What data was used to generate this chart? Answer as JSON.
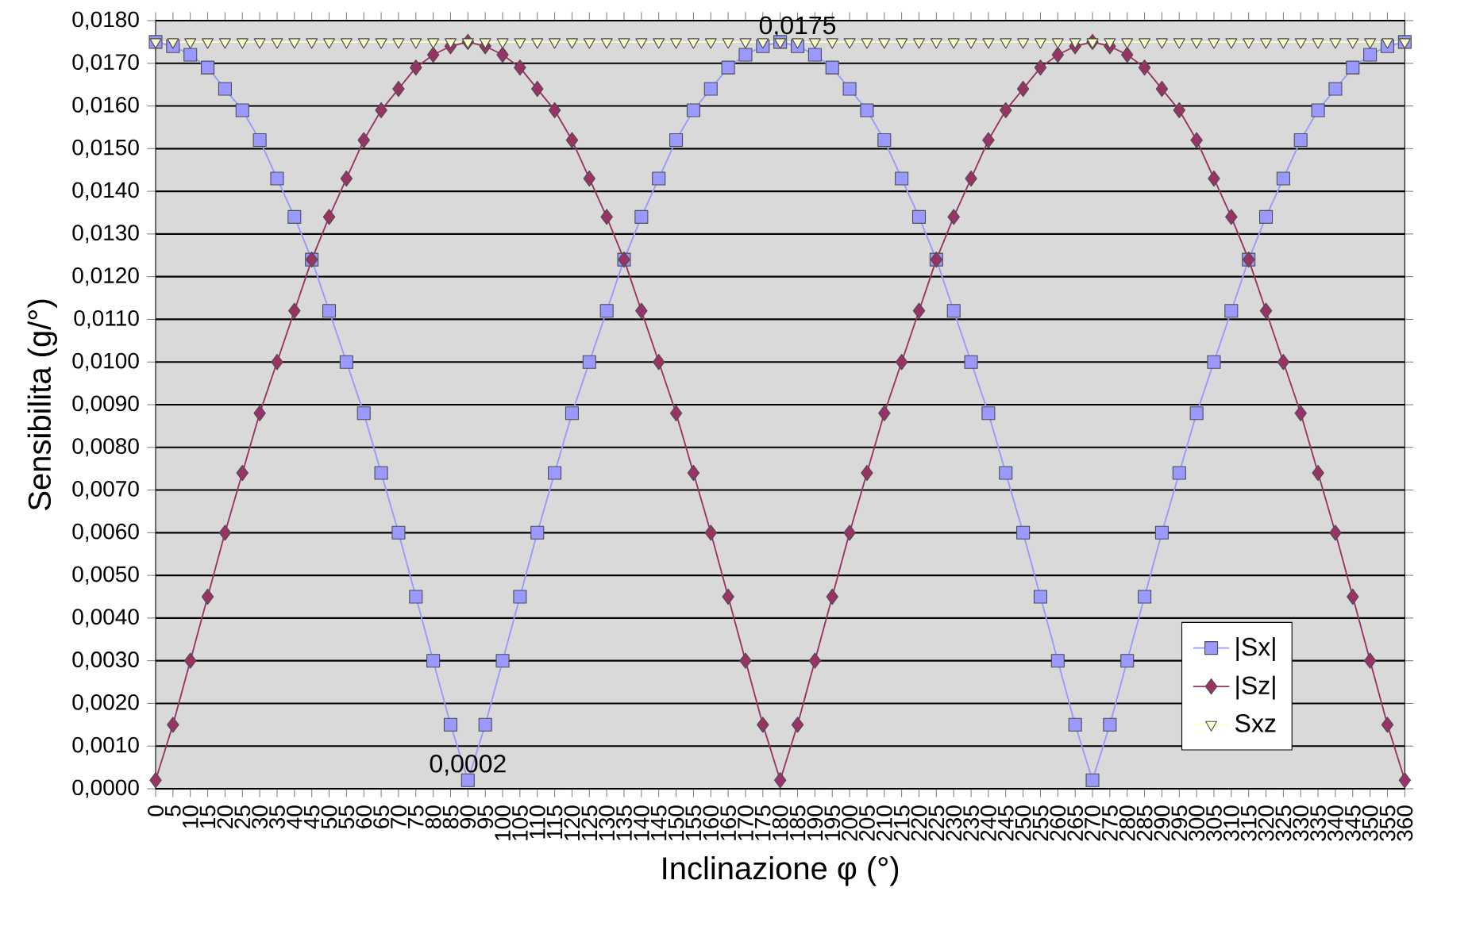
{
  "chart_data": {
    "type": "line",
    "xlabel": "Inclinazione  φ (°)",
    "ylabel": "Sensibilita (g/°)",
    "categories": [
      "0",
      "5",
      "10",
      "15",
      "20",
      "25",
      "30",
      "35",
      "40",
      "45",
      "50",
      "55",
      "60",
      "65",
      "70",
      "75",
      "80",
      "85",
      "90",
      "95",
      "100",
      "105",
      "110",
      "115",
      "120",
      "125",
      "130",
      "135",
      "140",
      "145",
      "150",
      "155",
      "160",
      "165",
      "170",
      "175",
      "180",
      "185",
      "190",
      "195",
      "200",
      "205",
      "210",
      "215",
      "220",
      "225",
      "230",
      "235",
      "240",
      "245",
      "250",
      "255",
      "260",
      "265",
      "270",
      "275",
      "280",
      "285",
      "290",
      "295",
      "300",
      "305",
      "310",
      "315",
      "320",
      "325",
      "330",
      "335",
      "340",
      "345",
      "350",
      "355",
      "360"
    ],
    "ylim": [
      0,
      0.018
    ],
    "yticks": [
      {
        "value": 0,
        "label": "0,0000"
      },
      {
        "value": 0.001,
        "label": "0,0010"
      },
      {
        "value": 0.002,
        "label": "0,0020"
      },
      {
        "value": 0.003,
        "label": "0,0030"
      },
      {
        "value": 0.004,
        "label": "0,0040"
      },
      {
        "value": 0.005,
        "label": "0,0050"
      },
      {
        "value": 0.006,
        "label": "0,0060"
      },
      {
        "value": 0.007,
        "label": "0,0070"
      },
      {
        "value": 0.008,
        "label": "0,0080"
      },
      {
        "value": 0.009,
        "label": "0,0090"
      },
      {
        "value": 0.01,
        "label": "0,0100"
      },
      {
        "value": 0.011,
        "label": "0,0110"
      },
      {
        "value": 0.012,
        "label": "0,0120"
      },
      {
        "value": 0.013,
        "label": "0,0130"
      },
      {
        "value": 0.014,
        "label": "0,0140"
      },
      {
        "value": 0.015,
        "label": "0,0150"
      },
      {
        "value": 0.016,
        "label": "0,0160"
      },
      {
        "value": 0.017,
        "label": "0,0170"
      },
      {
        "value": 0.018,
        "label": "0,0180"
      }
    ],
    "grid": "y",
    "legend": "bottom right",
    "series": [
      {
        "name": "|Sx|",
        "color": "#9999ff",
        "marker": "square",
        "values": [
          0.0175,
          0.0174,
          0.0172,
          0.0169,
          0.0164,
          0.0159,
          0.0152,
          0.0143,
          0.0134,
          0.0124,
          0.0112,
          0.01,
          0.0088,
          0.0074,
          0.006,
          0.0045,
          0.003,
          0.0015,
          0.0002,
          0.0015,
          0.003,
          0.0045,
          0.006,
          0.0074,
          0.0088,
          0.01,
          0.0112,
          0.0124,
          0.0134,
          0.0143,
          0.0152,
          0.0159,
          0.0164,
          0.0169,
          0.0172,
          0.0174,
          0.0175,
          0.0174,
          0.0172,
          0.0169,
          0.0164,
          0.0159,
          0.0152,
          0.0143,
          0.0134,
          0.0124,
          0.0112,
          0.01,
          0.0088,
          0.0074,
          0.006,
          0.0045,
          0.003,
          0.0015,
          0.0002,
          0.0015,
          0.003,
          0.0045,
          0.006,
          0.0074,
          0.0088,
          0.01,
          0.0112,
          0.0124,
          0.0134,
          0.0143,
          0.0152,
          0.0159,
          0.0164,
          0.0169,
          0.0172,
          0.0174,
          0.0175
        ],
        "value_labels": [
          null,
          null,
          null,
          null,
          null,
          null,
          null,
          null,
          null,
          null,
          null,
          null,
          null,
          null,
          null,
          null,
          null,
          null,
          "0,0002",
          null,
          null,
          null,
          null,
          null,
          null,
          null,
          null,
          null,
          null,
          null,
          null,
          null,
          null,
          null,
          null,
          null,
          null,
          null,
          null,
          null,
          null,
          null,
          null,
          null,
          null,
          null,
          null,
          null,
          null,
          null,
          null,
          null,
          null,
          null,
          null,
          null,
          null,
          null,
          null,
          null,
          null,
          null,
          null,
          null,
          null,
          null,
          null,
          null,
          null,
          null,
          null,
          null,
          null
        ]
      },
      {
        "name": "|Sz|",
        "color": "#993366",
        "marker": "diamond",
        "values": [
          0.0002,
          0.0015,
          0.003,
          0.0045,
          0.006,
          0.0074,
          0.0088,
          0.01,
          0.0112,
          0.0124,
          0.0134,
          0.0143,
          0.0152,
          0.0159,
          0.0164,
          0.0169,
          0.0172,
          0.0174,
          0.0175,
          0.0174,
          0.0172,
          0.0169,
          0.0164,
          0.0159,
          0.0152,
          0.0143,
          0.0134,
          0.0124,
          0.0112,
          0.01,
          0.0088,
          0.0074,
          0.006,
          0.0045,
          0.003,
          0.0015,
          0.0002,
          0.0015,
          0.003,
          0.0045,
          0.006,
          0.0074,
          0.0088,
          0.01,
          0.0112,
          0.0124,
          0.0134,
          0.0143,
          0.0152,
          0.0159,
          0.0164,
          0.0169,
          0.0172,
          0.0174,
          0.0175,
          0.0174,
          0.0172,
          0.0169,
          0.0164,
          0.0159,
          0.0152,
          0.0143,
          0.0134,
          0.0124,
          0.0112,
          0.01,
          0.0088,
          0.0074,
          0.006,
          0.0045,
          0.003,
          0.0015,
          0.0002
        ]
      },
      {
        "name": "Sxz",
        "color": "#ffffcc",
        "marker": "triangle",
        "values": [
          0.0175,
          0.0175,
          0.0175,
          0.0175,
          0.0175,
          0.0175,
          0.0175,
          0.0175,
          0.0175,
          0.0175,
          0.0175,
          0.0175,
          0.0175,
          0.0175,
          0.0175,
          0.0175,
          0.0175,
          0.0175,
          0.0175,
          0.0175,
          0.0175,
          0.0175,
          0.0175,
          0.0175,
          0.0175,
          0.0175,
          0.0175,
          0.0175,
          0.0175,
          0.0175,
          0.0175,
          0.0175,
          0.0175,
          0.0175,
          0.0175,
          0.0175,
          0.0175,
          0.0175,
          0.0175,
          0.0175,
          0.0175,
          0.0175,
          0.0175,
          0.0175,
          0.0175,
          0.0175,
          0.0175,
          0.0175,
          0.0175,
          0.0175,
          0.0175,
          0.0175,
          0.0175,
          0.0175,
          0.0175,
          0.0175,
          0.0175,
          0.0175,
          0.0175,
          0.0175,
          0.0175,
          0.0175,
          0.0175,
          0.0175,
          0.0175,
          0.0175,
          0.0175,
          0.0175,
          0.0175,
          0.0175,
          0.0175,
          0.0175,
          0.0175
        ],
        "value_labels": [
          null,
          null,
          null,
          null,
          null,
          null,
          null,
          null,
          null,
          null,
          null,
          null,
          null,
          null,
          null,
          null,
          null,
          null,
          null,
          null,
          null,
          null,
          null,
          null,
          null,
          null,
          null,
          null,
          null,
          null,
          null,
          null,
          null,
          null,
          null,
          null,
          null,
          "0,0175",
          null,
          null,
          null,
          null,
          null,
          null,
          null,
          null,
          null,
          null,
          null,
          null,
          null,
          null,
          null,
          null,
          null,
          null,
          null,
          null,
          null,
          null,
          null,
          null,
          null,
          null,
          null,
          null,
          null,
          null,
          null,
          null,
          null,
          null,
          null
        ]
      }
    ]
  }
}
